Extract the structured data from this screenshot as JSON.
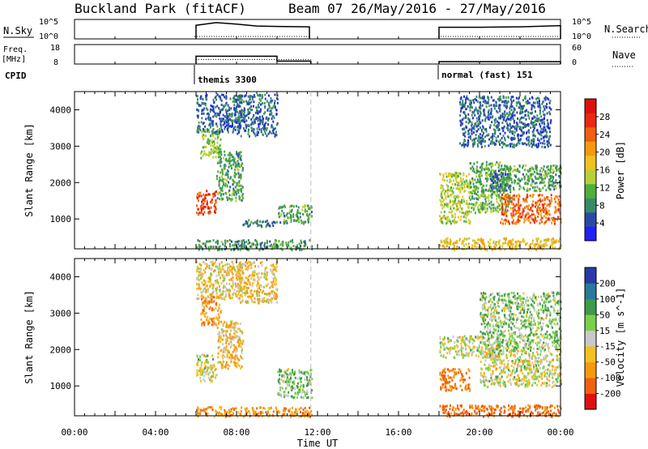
{
  "header": {
    "title": "Buckland Park (fitACF)",
    "beam": "Beam 07 26/May/2016 - 27/May/2016"
  },
  "nsky_panel": {
    "left_label": "N.Sky",
    "right_label": "N.Search",
    "left_ticks": [
      "10^5",
      "10^0"
    ],
    "right_ticks": [
      "10^5",
      "10^0"
    ]
  },
  "freq_panel": {
    "left_label_top": "Freq.",
    "left_label_bottom": "[MHz]",
    "right_label": "Nave",
    "left_ticks": [
      "18",
      "8"
    ],
    "right_ticks": [
      "60",
      "0"
    ]
  },
  "cpid": {
    "label": "CPID",
    "segments": [
      {
        "label": "themis 3300",
        "start_hour": 6.0
      },
      {
        "label": "normal (fast) 151",
        "start_hour": 18.0
      }
    ]
  },
  "chart_data": {
    "type": "heatmap",
    "x_axis": {
      "label": "Time UT",
      "range_hours": [
        0,
        24
      ],
      "tick_labels": [
        "00:00",
        "04:00",
        "08:00",
        "12:00",
        "16:00",
        "20:00",
        "00:00"
      ],
      "tick_values_hours": [
        0,
        4,
        8,
        12,
        16,
        20,
        24
      ]
    },
    "range_axis": {
      "label": "Slant Range [km]",
      "range_km": [
        180,
        4500
      ],
      "tick_values_km": [
        1000,
        2000,
        3000,
        4000
      ],
      "tick_labels": [
        "1000",
        "2000",
        "3000",
        "4000"
      ]
    },
    "operating_intervals_hours": [
      [
        6.0,
        11.67
      ],
      [
        18.0,
        24.0
      ]
    ],
    "dashed_marker_hour": 11.67,
    "nsky_series": [
      {
        "hour": 6.0,
        "log10": 3.5
      },
      {
        "hour": 7.0,
        "log10": 4.2
      },
      {
        "hour": 8.0,
        "log10": 3.8
      },
      {
        "hour": 9.0,
        "log10": 3.3
      },
      {
        "hour": 10.0,
        "log10": 3.2
      },
      {
        "hour": 11.6,
        "log10": 3.1
      },
      {
        "hour": 18.0,
        "log10": 3.0
      },
      {
        "hour": 20.0,
        "log10": 3.0
      },
      {
        "hour": 22.0,
        "log10": 3.1
      },
      {
        "hour": 24.0,
        "log10": 3.4
      }
    ],
    "frequency_mhz": [
      {
        "start_hour": 6.0,
        "end_hour": 10.0,
        "value": 12.0
      },
      {
        "start_hour": 10.0,
        "end_hour": 11.67,
        "value": 9.5
      },
      {
        "start_hour": 18.0,
        "end_hour": 24.0,
        "value": 9.2
      }
    ],
    "nave": [
      {
        "start_hour": 6.0,
        "end_hour": 11.67,
        "value": 14
      },
      {
        "start_hour": 18.0,
        "end_hour": 24.0,
        "value": 8
      }
    ],
    "power_colorbar": {
      "label": "Power [dB]",
      "tick_labels": [
        "4",
        "8",
        "12",
        "16",
        "20",
        "24",
        "28"
      ],
      "tick_values": [
        4,
        8,
        12,
        16,
        20,
        24,
        28
      ],
      "range": [
        0,
        32
      ],
      "colors": [
        "#2020ff",
        "#2a4aa8",
        "#3a8a6a",
        "#4faf3a",
        "#b8d038",
        "#f2c020",
        "#f59a10",
        "#f06010",
        "#e82a10",
        "#e01010"
      ]
    },
    "velocity_colorbar": {
      "label": "Velocity [m s^-1]",
      "tick_labels": [
        "200",
        "100",
        "50",
        "15",
        "-15",
        "-50",
        "-100",
        "-200"
      ],
      "colors": [
        "#2a3aa8",
        "#2a7a9a",
        "#3f9a4a",
        "#7ad04a",
        "#c8c8c8",
        "#f2c020",
        "#f59a10",
        "#f06010",
        "#e01010"
      ]
    },
    "power_regions": [
      {
        "t0": 6.0,
        "t1": 7.0,
        "r0": 1150,
        "r1": 1800,
        "level": 26
      },
      {
        "t0": 6.2,
        "t1": 7.2,
        "r0": 2700,
        "r1": 3500,
        "level": 13
      },
      {
        "t0": 6.0,
        "t1": 8.2,
        "r0": 3400,
        "r1": 4450,
        "level": 6
      },
      {
        "t0": 7.0,
        "t1": 8.3,
        "r0": 1500,
        "r1": 2900,
        "level": 10
      },
      {
        "t0": 8.0,
        "t1": 10.0,
        "r0": 3300,
        "r1": 4450,
        "level": 6
      },
      {
        "t0": 8.3,
        "t1": 10.0,
        "r0": 800,
        "r1": 1000,
        "level": 7
      },
      {
        "t0": 10.0,
        "t1": 11.7,
        "r0": 900,
        "r1": 1400,
        "level": 10
      },
      {
        "t0": 6.0,
        "t1": 11.7,
        "r0": 180,
        "r1": 450,
        "level": 9
      },
      {
        "t0": 18.0,
        "t1": 19.5,
        "r0": 900,
        "r1": 2300,
        "level": 14
      },
      {
        "t0": 19.5,
        "t1": 21.5,
        "r0": 1200,
        "r1": 2600,
        "level": 11
      },
      {
        "t0": 20.5,
        "t1": 21.5,
        "r0": 1800,
        "r1": 2400,
        "level": 6
      },
      {
        "t0": 21.0,
        "t1": 24.0,
        "r0": 900,
        "r1": 1700,
        "level": 24
      },
      {
        "t0": 21.0,
        "t1": 24.0,
        "r0": 1800,
        "r1": 2500,
        "level": 10
      },
      {
        "t0": 19.0,
        "t1": 23.5,
        "r0": 3000,
        "r1": 4400,
        "level": 6
      },
      {
        "t0": 18.0,
        "t1": 24.0,
        "r0": 180,
        "r1": 500,
        "level": 18
      }
    ],
    "velocity_regions": [
      {
        "t0": 6.0,
        "t1": 7.0,
        "r0": 1150,
        "r1": 1900,
        "vel": 0
      },
      {
        "t0": 6.2,
        "t1": 7.2,
        "r0": 2700,
        "r1": 3500,
        "vel": -60
      },
      {
        "t0": 6.0,
        "t1": 8.2,
        "r0": 3400,
        "r1": 4450,
        "vel": -30
      },
      {
        "t0": 7.0,
        "t1": 8.3,
        "r0": 1500,
        "r1": 2800,
        "vel": -40
      },
      {
        "t0": 8.0,
        "t1": 10.0,
        "r0": 3300,
        "r1": 4450,
        "vel": -35
      },
      {
        "t0": 10.0,
        "t1": 11.7,
        "r0": 700,
        "r1": 1500,
        "vel": 40
      },
      {
        "t0": 6.0,
        "t1": 11.7,
        "r0": 180,
        "r1": 450,
        "vel": -80
      },
      {
        "t0": 18.0,
        "t1": 19.5,
        "r0": 900,
        "r1": 1500,
        "vel": -110
      },
      {
        "t0": 18.0,
        "t1": 21.0,
        "r0": 1800,
        "r1": 2400,
        "vel": 0
      },
      {
        "t0": 20.0,
        "t1": 24.0,
        "r0": 1000,
        "r1": 2000,
        "vel": 0
      },
      {
        "t0": 20.0,
        "t1": 24.0,
        "r0": 2000,
        "r1": 3600,
        "vel": 30
      },
      {
        "t0": 18.0,
        "t1": 24.0,
        "r0": 180,
        "r1": 500,
        "vel": -120
      }
    ]
  }
}
